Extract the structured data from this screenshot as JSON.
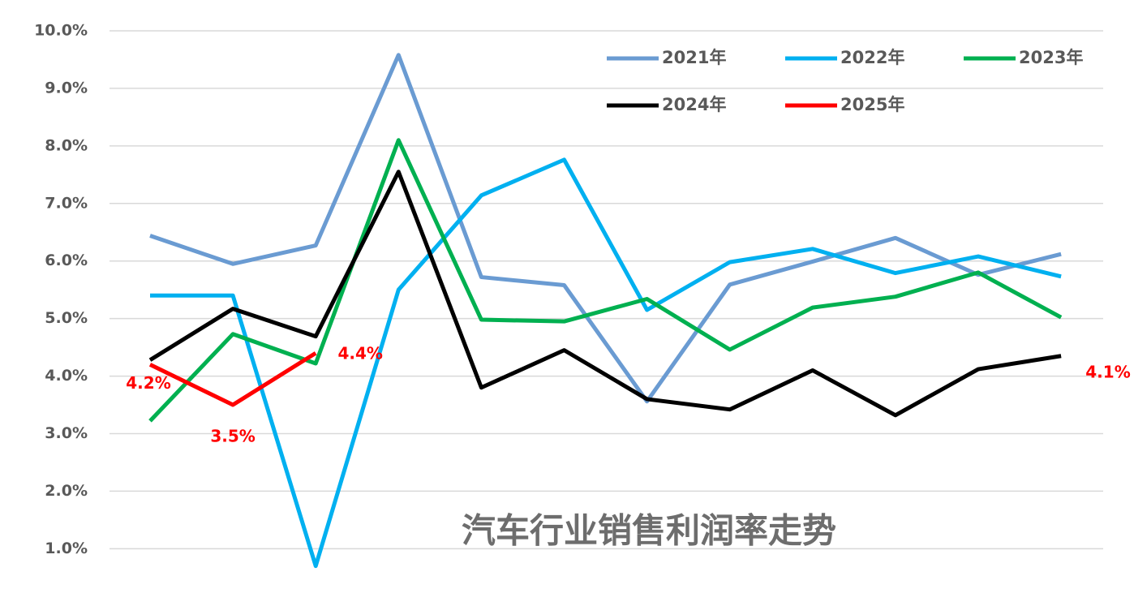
{
  "chart_data": {
    "type": "line",
    "title": "汽车行业销售利润率走势",
    "categories": [
      null,
      null,
      null,
      null,
      null,
      null,
      null,
      null,
      null,
      null,
      null,
      null
    ],
    "series": [
      {
        "name": "2021年",
        "color": "#6a9bd2",
        "values": [
          6.44,
          5.95,
          6.27,
          9.58,
          5.72,
          5.58,
          3.56,
          5.59,
          5.99,
          6.4,
          5.76,
          6.12
        ]
      },
      {
        "name": "2022年",
        "color": "#00b0f0",
        "values": [
          5.4,
          5.4,
          0.7,
          5.5,
          7.14,
          7.76,
          5.15,
          5.98,
          6.21,
          5.79,
          6.08,
          5.73
        ]
      },
      {
        "name": "2023年",
        "color": "#00b050",
        "values": [
          3.22,
          4.73,
          4.22,
          8.1,
          4.98,
          4.95,
          5.34,
          4.46,
          5.19,
          5.38,
          5.8,
          5.02
        ]
      },
      {
        "name": "2024年",
        "color": "#000000",
        "values": [
          4.28,
          5.17,
          4.69,
          7.55,
          3.8,
          4.45,
          3.6,
          3.42,
          4.1,
          3.32,
          4.12,
          4.35
        ]
      },
      {
        "name": "2025年",
        "color": "#ff0000",
        "values": [
          4.2,
          3.5,
          4.4,
          null,
          null,
          null,
          null,
          null,
          null,
          null,
          null,
          null
        ],
        "value_labels": [
          "4.2%",
          "3.5%",
          "4.4%",
          null,
          null,
          null,
          null,
          null,
          null,
          null,
          null,
          null
        ]
      }
    ],
    "annotations": [
      {
        "text": "4.1%",
        "color": "#ff0000"
      }
    ],
    "ylim": [
      0.3,
      10.0
    ],
    "yticks": [
      {
        "value": 1,
        "label": "1.0%"
      },
      {
        "value": 2,
        "label": "2.0%"
      },
      {
        "value": 3,
        "label": "3.0%"
      },
      {
        "value": 4,
        "label": "4.0%"
      },
      {
        "value": 5,
        "label": "5.0%"
      },
      {
        "value": 6,
        "label": "6.0%"
      },
      {
        "value": 7,
        "label": "7.0%"
      },
      {
        "value": 8,
        "label": "8.0%"
      },
      {
        "value": 9,
        "label": "9.0%"
      },
      {
        "value": 10,
        "label": "10.0%"
      }
    ],
    "grid": true,
    "legend": "top-right"
  }
}
